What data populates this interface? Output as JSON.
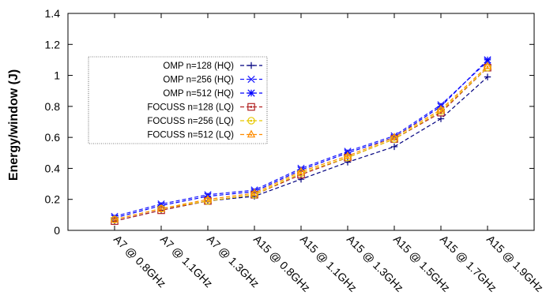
{
  "chart_data": {
    "type": "line",
    "title": "",
    "xlabel": "",
    "ylabel": "Energy/window (J)",
    "ylim": [
      0,
      1.4
    ],
    "yticks": [
      0,
      0.2,
      0.4,
      0.6,
      0.8,
      1,
      1.2,
      1.4
    ],
    "ytick_labels": [
      "0",
      "0.2",
      "0.4",
      "0.6",
      "0.8",
      "1",
      "1.2",
      "1.4"
    ],
    "categories": [
      "A7 @ 0.8GHz",
      "A7 @ 1.1GHz",
      "A7 @ 1.3GHz",
      "A15 @ 0.8GHz",
      "A15 @ 1.1GHz",
      "A15 @ 1.3GHz",
      "A15 @ 1.5GHz",
      "A15 @ 1.7GHz",
      "A15 @ 1.9GHz"
    ],
    "legend_position": "top-left",
    "grid": false,
    "series": [
      {
        "name": "OMP n=128 (HQ)",
        "color": "#000080",
        "marker": "plus",
        "values": [
          0.06,
          0.13,
          0.19,
          0.22,
          0.33,
          0.44,
          0.54,
          0.72,
          0.99
        ]
      },
      {
        "name": "OMP n=256 (HQ)",
        "color": "#1a1aff",
        "marker": "x",
        "values": [
          0.09,
          0.17,
          0.23,
          0.26,
          0.4,
          0.51,
          0.61,
          0.81,
          1.09
        ]
      },
      {
        "name": "OMP n=512 (HQ)",
        "color": "#0000ff",
        "marker": "star",
        "values": [
          0.08,
          0.16,
          0.22,
          0.25,
          0.39,
          0.5,
          0.6,
          0.8,
          1.1
        ]
      },
      {
        "name": "FOCUSS n=128 (LQ)",
        "color": "#b22222",
        "marker": "square",
        "values": [
          0.06,
          0.13,
          0.19,
          0.23,
          0.36,
          0.47,
          0.59,
          0.76,
          1.05
        ]
      },
      {
        "name": "FOCUSS n=256 (LQ)",
        "color": "#e6c800",
        "marker": "circle",
        "values": [
          0.07,
          0.14,
          0.19,
          0.23,
          0.37,
          0.47,
          0.59,
          0.77,
          1.05
        ]
      },
      {
        "name": "FOCUSS n=512 (LQ)",
        "color": "#ff8c00",
        "marker": "triangle",
        "values": [
          0.07,
          0.14,
          0.2,
          0.24,
          0.38,
          0.48,
          0.6,
          0.78,
          1.06
        ]
      }
    ]
  }
}
